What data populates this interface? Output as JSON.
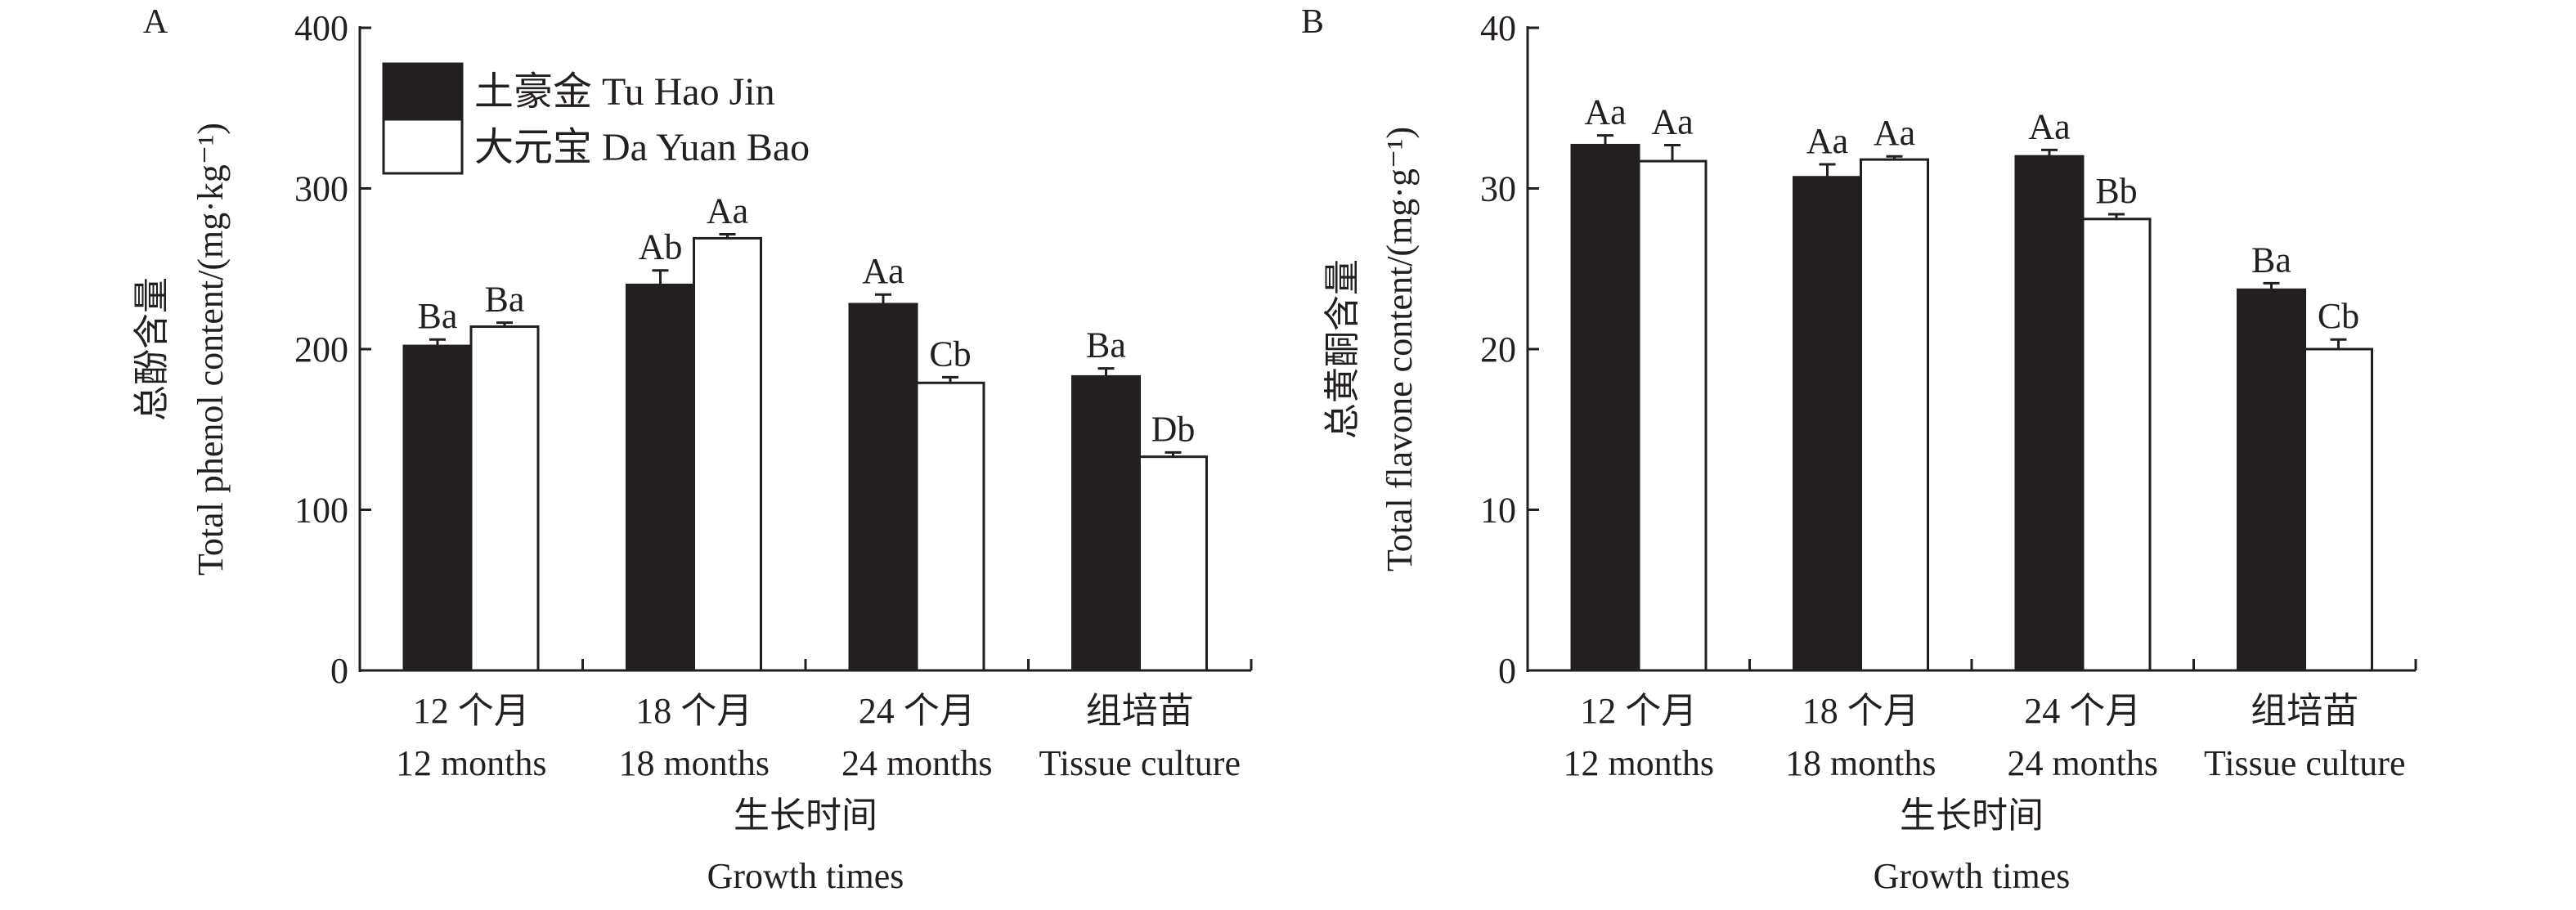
{
  "legend": [
    "土豪金 Tu Hao Jin",
    "大元宝 Da Yuan Bao"
  ],
  "colors": {
    "tu_hao_jin": "#231f20",
    "da_yuan_bao": "#ffffff",
    "axis": "#231f20"
  },
  "chart_data": [
    {
      "type": "bar",
      "panel": "A",
      "ylabel_cn": "总酚含量",
      "ylabel": "Total phenol content/(mg·kg⁻¹)",
      "xlabel_cn": "生长时间",
      "xlabel": "Growth times",
      "categories_cn": [
        "12 个月",
        "18 个月",
        "24 个月",
        "组培苗"
      ],
      "categories": [
        "12 months",
        "18 months",
        "24 months",
        "Tissue culture"
      ],
      "ylim": [
        0,
        400
      ],
      "yticks": [
        0,
        100,
        200,
        300,
        400
      ],
      "legend_position": "top-left",
      "series": [
        {
          "name": "土豪金 Tu Hao Jin",
          "values": [
            202,
            240,
            228,
            183
          ],
          "errors": [
            4,
            9,
            6,
            5
          ],
          "labels": [
            "Ba",
            "Ab",
            "Aa",
            "Ba"
          ]
        },
        {
          "name": "大元宝 Da Yuan Bao",
          "values": [
            214,
            269,
            179,
            133
          ],
          "errors": [
            2.5,
            2.5,
            3.5,
            2.7
          ],
          "labels": [
            "Ba",
            "Aa",
            "Cb",
            "Db"
          ]
        }
      ]
    },
    {
      "type": "bar",
      "panel": "B",
      "ylabel_cn": "总黄酮含量",
      "ylabel": "Total flavone content/(mg·g⁻¹)",
      "xlabel_cn": "生长时间",
      "xlabel": "Growth times",
      "categories_cn": [
        "12 个月",
        "18 个月",
        "24 个月",
        "组培苗"
      ],
      "categories": [
        "12 months",
        "18 months",
        "24 months",
        "Tissue culture"
      ],
      "ylim": [
        0,
        40
      ],
      "yticks": [
        0,
        10,
        20,
        30,
        40
      ],
      "series": [
        {
          "name": "土豪金 Tu Hao Jin",
          "values": [
            32.7,
            30.7,
            32.0,
            23.7
          ],
          "errors": [
            0.6,
            0.8,
            0.4,
            0.4
          ],
          "labels": [
            "Aa",
            "Aa",
            "Aa",
            "Ba"
          ]
        },
        {
          "name": "大元宝 Da Yuan Bao",
          "values": [
            31.7,
            31.8,
            28.1,
            20.0
          ],
          "errors": [
            1.0,
            0.2,
            0.3,
            0.6
          ],
          "labels": [
            "Aa",
            "Aa",
            "Bb",
            "Cb"
          ]
        }
      ]
    }
  ]
}
